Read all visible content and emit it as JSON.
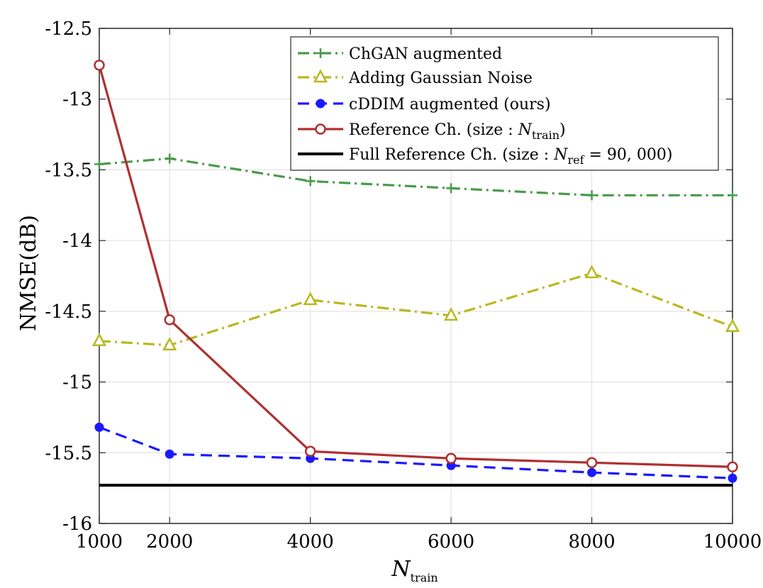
{
  "chart_data": {
    "type": "line",
    "x": [
      1000,
      2000,
      4000,
      6000,
      8000,
      10000
    ],
    "xlim": [
      1000,
      10000
    ],
    "ylim": [
      -16,
      -12.5
    ],
    "xticks": [
      1000,
      2000,
      4000,
      6000,
      8000,
      10000
    ],
    "xtick_labels": [
      "1000",
      "2000",
      "4000",
      "6000",
      "8000",
      "10000"
    ],
    "yticks": [
      -12.5,
      -13,
      -13.5,
      -14,
      -14.5,
      -15,
      -15.5,
      -16
    ],
    "ytick_labels": [
      "-12.5",
      "-13",
      "-13.5",
      "-14",
      "-14.5",
      "-15",
      "-15.5",
      "-16"
    ],
    "ylabel": "NMSE(dB)",
    "xlabel": {
      "main": "N",
      "sub": "train"
    },
    "legend_position": "top-right",
    "grid": true,
    "series": [
      {
        "name": "ChGAN augmented",
        "color": "#4a9a4a",
        "dash": "dashdot",
        "marker": "plus",
        "values": [
          -13.46,
          -13.42,
          -13.58,
          -13.63,
          -13.68,
          -13.68
        ]
      },
      {
        "name": "Adding Gaussian Noise",
        "color": "#b8b820",
        "dash": "dashdot",
        "marker": "triangle",
        "values": [
          -14.71,
          -14.74,
          -14.42,
          -14.53,
          -14.23,
          -14.61
        ]
      },
      {
        "name": "cDDIM augmented (ours)",
        "color": "#1a1aff",
        "dash": "dashed",
        "marker": "dot",
        "values": [
          -15.32,
          -15.51,
          -15.54,
          -15.59,
          -15.64,
          -15.68
        ]
      },
      {
        "name": "Reference Ch. (size : N_train)",
        "legend_main": "Reference Ch. (size : ",
        "legend_var": "N",
        "legend_sub": "train",
        "legend_close": ")",
        "color": "#b03030",
        "dash": "solid",
        "marker": "circle",
        "values": [
          -12.76,
          -14.56,
          -15.49,
          -15.54,
          -15.57,
          -15.6
        ]
      },
      {
        "name": "Full Reference Ch. (size : N_ref = 90,000)",
        "legend_main": "Full Reference Ch. (size : ",
        "legend_var": "N",
        "legend_sub": "ref",
        "legend_close": " = 90, 000)",
        "color": "#000000",
        "dash": "solid",
        "marker": "none",
        "values": [
          -15.73,
          -15.73,
          -15.73,
          -15.73,
          -15.73,
          -15.73
        ]
      }
    ]
  }
}
